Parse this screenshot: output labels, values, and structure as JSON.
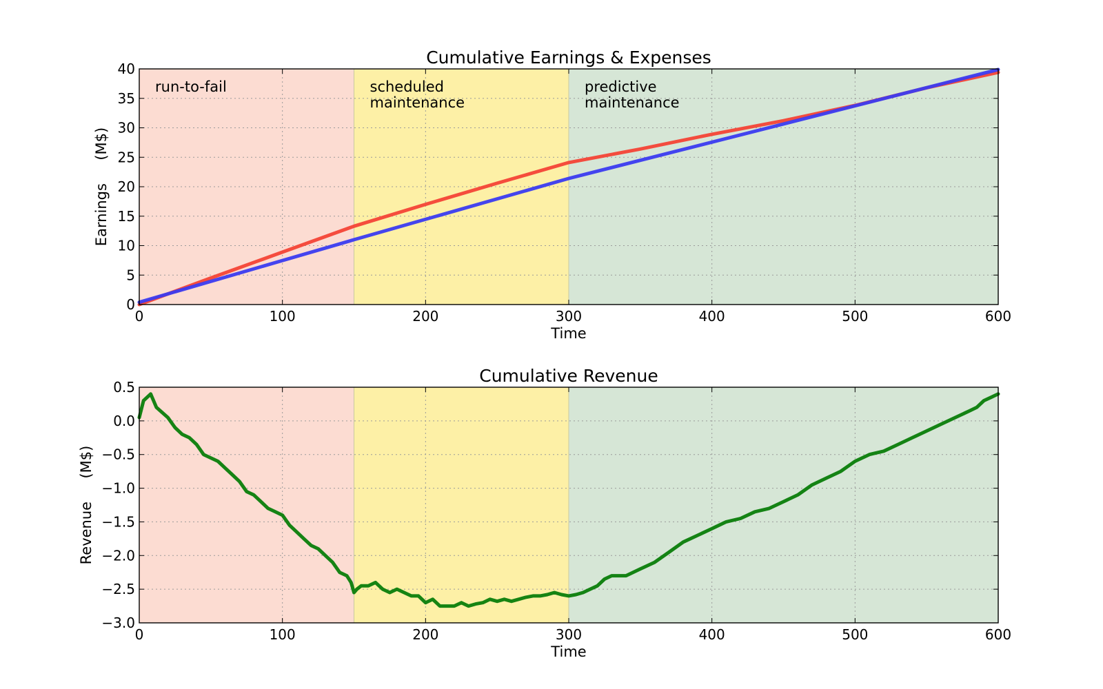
{
  "chart_data": [
    {
      "type": "line",
      "title": "Cumulative Earnings & Expenses",
      "xlabel": "Time",
      "ylabel": "Earnings     (M$)",
      "xlim": [
        0,
        600
      ],
      "ylim": [
        0,
        40
      ],
      "xticks": [
        "0",
        "100",
        "200",
        "300",
        "400",
        "500",
        "600"
      ],
      "yticks": [
        "0",
        "5",
        "10",
        "15",
        "20",
        "25",
        "30",
        "35",
        "40"
      ],
      "grid": true,
      "regions": [
        {
          "x0": 0,
          "x1": 150,
          "color": "#fcdcd2",
          "label": [
            "run-to-fail"
          ]
        },
        {
          "x0": 150,
          "x1": 300,
          "color": "#fdf0a6",
          "label": [
            "scheduled",
            "maintenance"
          ]
        },
        {
          "x0": 300,
          "x1": 600,
          "color": "#d6e6d6",
          "label": [
            "predictive",
            "maintenance"
          ]
        }
      ],
      "series": [
        {
          "color": "#f44336",
          "x": [
            0,
            50,
            100,
            150,
            200,
            250,
            300,
            350,
            400,
            450,
            500,
            550,
            600
          ],
          "y": [
            0,
            4.5,
            8.9,
            13.3,
            17.0,
            20.6,
            24.1,
            26.4,
            28.9,
            31.2,
            33.8,
            36.8,
            39.4
          ]
        },
        {
          "color": "#3b3bf0",
          "x": [
            0,
            150,
            300,
            600
          ],
          "y": [
            0.4,
            11.0,
            21.4,
            39.9
          ]
        }
      ]
    },
    {
      "type": "line",
      "title": "Cumulative Revenue",
      "xlabel": "Time",
      "ylabel": "Revenue     (M$)",
      "xlim": [
        0,
        600
      ],
      "ylim": [
        -3.0,
        0.5
      ],
      "xticks": [
        "0",
        "100",
        "200",
        "300",
        "400",
        "500",
        "600"
      ],
      "yticks": [
        "−3.0",
        "−2.5",
        "−2.0",
        "−1.5",
        "−1.0",
        "−0.5",
        "0.0",
        "0.5"
      ],
      "grid": true,
      "regions": [
        {
          "x0": 0,
          "x1": 150,
          "color": "#fcdcd2"
        },
        {
          "x0": 150,
          "x1": 300,
          "color": "#fdf0a6"
        },
        {
          "x0": 300,
          "x1": 600,
          "color": "#d6e6d6"
        }
      ],
      "series": [
        {
          "color": "#0a7d0a",
          "x": [
            0,
            3,
            8,
            12,
            20,
            25,
            30,
            35,
            40,
            45,
            50,
            55,
            60,
            65,
            70,
            75,
            80,
            85,
            90,
            95,
            100,
            105,
            110,
            115,
            120,
            125,
            130,
            135,
            140,
            145,
            148,
            150,
            152,
            155,
            160,
            165,
            170,
            175,
            180,
            185,
            190,
            195,
            200,
            205,
            210,
            215,
            220,
            225,
            230,
            235,
            240,
            245,
            250,
            255,
            260,
            265,
            270,
            275,
            280,
            285,
            290,
            295,
            300,
            305,
            310,
            315,
            320,
            325,
            330,
            340,
            350,
            360,
            370,
            380,
            390,
            400,
            410,
            420,
            430,
            440,
            450,
            460,
            470,
            480,
            490,
            500,
            510,
            520,
            530,
            540,
            550,
            560,
            570,
            580,
            585,
            590,
            595,
            600
          ],
          "y": [
            0.05,
            0.3,
            0.4,
            0.2,
            0.05,
            -0.1,
            -0.2,
            -0.25,
            -0.35,
            -0.5,
            -0.55,
            -0.6,
            -0.7,
            -0.8,
            -0.9,
            -1.05,
            -1.1,
            -1.2,
            -1.3,
            -1.35,
            -1.4,
            -1.55,
            -1.65,
            -1.75,
            -1.85,
            -1.9,
            -2.0,
            -2.1,
            -2.25,
            -2.3,
            -2.4,
            -2.55,
            -2.5,
            -2.45,
            -2.45,
            -2.4,
            -2.5,
            -2.55,
            -2.5,
            -2.55,
            -2.6,
            -2.6,
            -2.7,
            -2.65,
            -2.75,
            -2.75,
            -2.75,
            -2.7,
            -2.75,
            -2.72,
            -2.7,
            -2.65,
            -2.68,
            -2.65,
            -2.68,
            -2.65,
            -2.62,
            -2.6,
            -2.6,
            -2.58,
            -2.55,
            -2.58,
            -2.6,
            -2.58,
            -2.55,
            -2.5,
            -2.45,
            -2.35,
            -2.3,
            -2.3,
            -2.2,
            -2.1,
            -1.95,
            -1.8,
            -1.7,
            -1.6,
            -1.5,
            -1.45,
            -1.35,
            -1.3,
            -1.2,
            -1.1,
            -0.95,
            -0.85,
            -0.75,
            -0.6,
            -0.5,
            -0.45,
            -0.35,
            -0.25,
            -0.15,
            -0.05,
            0.05,
            0.15,
            0.2,
            0.3,
            0.35,
            0.4
          ]
        }
      ]
    }
  ]
}
